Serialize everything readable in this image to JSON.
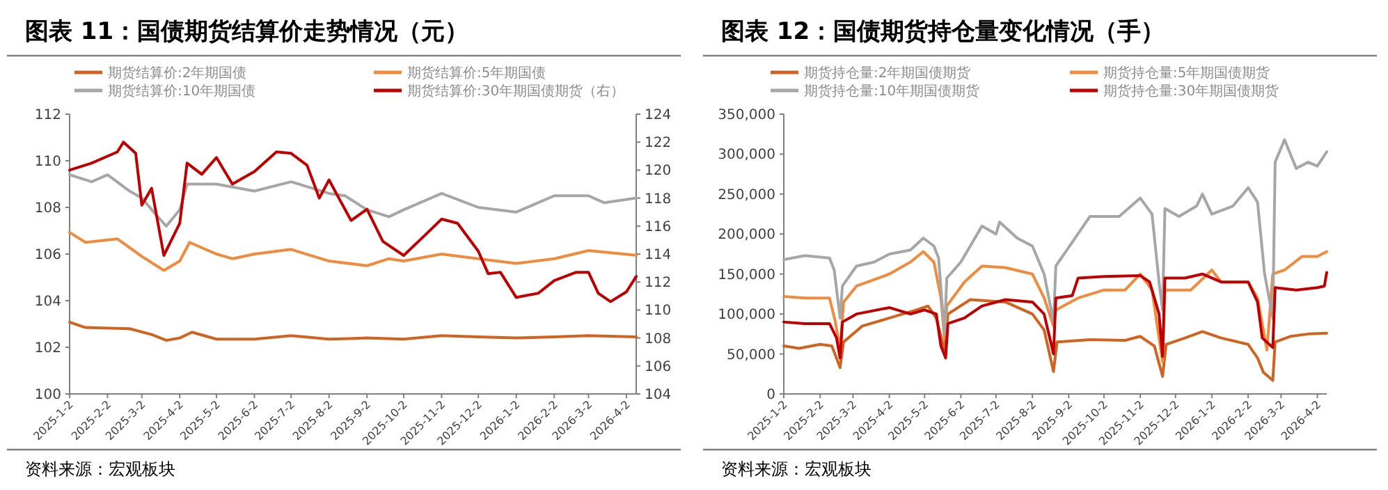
{
  "chart_data": [
    {
      "type": "line",
      "title": "图表 11：国债期货结算价走势情况（元）",
      "legend": "top",
      "annotations": [
        "资料来源：宏观板块"
      ],
      "xlim": [
        "2025-01-02",
        "2026-04-10"
      ],
      "xticks": [
        {
          "value": "2025-01-02",
          "label": "2025-1-2"
        },
        {
          "value": "2025-02-02",
          "label": "2025-2-2"
        },
        {
          "value": "2025-03-02",
          "label": "2025-3-2"
        },
        {
          "value": "2025-04-02",
          "label": "2025-4-2"
        },
        {
          "value": "2025-05-02",
          "label": "2025-5-2"
        },
        {
          "value": "2025-06-02",
          "label": "2025-6-2"
        },
        {
          "value": "2025-07-02",
          "label": "2025-7-2"
        },
        {
          "value": "2025-08-02",
          "label": "2025-8-2"
        },
        {
          "value": "2025-09-02",
          "label": "2025-9-2"
        },
        {
          "value": "2025-10-02",
          "label": "2025-10-2"
        },
        {
          "value": "2025-11-02",
          "label": "2025-11-2"
        },
        {
          "value": "2025-12-02",
          "label": "2025-12-2"
        },
        {
          "value": "2026-01-02",
          "label": "2026-1-2"
        },
        {
          "value": "2026-02-02",
          "label": "2026-2-2"
        },
        {
          "value": "2026-03-02",
          "label": "2026-3-2"
        },
        {
          "value": "2026-04-02",
          "label": "2026-4-2"
        }
      ],
      "ylim": [
        100,
        112
      ],
      "yticks": [
        100,
        102,
        104,
        106,
        108,
        110,
        112
      ],
      "y2lim": [
        104,
        124
      ],
      "y2ticks": [
        104,
        106,
        108,
        110,
        112,
        114,
        116,
        118,
        120,
        122,
        124
      ],
      "series": [
        {
          "name": "期货结算价:2年期国债",
          "color": "#d0631f",
          "x": [
            "2025-01-02",
            "2025-01-15",
            "2025-02-20",
            "2025-03-10",
            "2025-03-22",
            "2025-04-02",
            "2025-04-12",
            "2025-05-02",
            "2025-06-02",
            "2025-07-02",
            "2025-08-02",
            "2025-09-02",
            "2025-10-02",
            "2025-11-02",
            "2025-12-02",
            "2026-01-02",
            "2026-02-02",
            "2026-03-02",
            "2026-04-10"
          ],
          "values": [
            103.08,
            102.85,
            102.8,
            102.55,
            102.3,
            102.4,
            102.65,
            102.35,
            102.35,
            102.5,
            102.35,
            102.4,
            102.35,
            102.5,
            102.45,
            102.4,
            102.45,
            102.5,
            102.45
          ]
        },
        {
          "name": "期货结算价:5年期国债",
          "color": "#f08a3c",
          "x": [
            "2025-01-02",
            "2025-01-15",
            "2025-02-10",
            "2025-03-02",
            "2025-03-20",
            "2025-04-02",
            "2025-04-10",
            "2025-05-02",
            "2025-05-15",
            "2025-06-02",
            "2025-07-02",
            "2025-08-02",
            "2025-09-02",
            "2025-09-20",
            "2025-10-02",
            "2025-11-02",
            "2025-12-02",
            "2026-01-02",
            "2026-02-02",
            "2026-03-02",
            "2026-04-10"
          ],
          "values": [
            106.93,
            106.5,
            106.65,
            105.9,
            105.3,
            105.7,
            106.5,
            106.0,
            105.8,
            106.0,
            106.2,
            105.7,
            105.5,
            105.8,
            105.7,
            106.0,
            105.8,
            105.6,
            105.8,
            106.15,
            105.95
          ]
        },
        {
          "name": "期货结算价:10年期国债",
          "color": "#a6a6a6",
          "x": [
            "2025-01-02",
            "2025-01-20",
            "2025-02-02",
            "2025-02-20",
            "2025-03-02",
            "2025-03-15",
            "2025-03-22",
            "2025-04-02",
            "2025-04-08",
            "2025-05-02",
            "2025-06-02",
            "2025-07-02",
            "2025-08-02",
            "2025-08-15",
            "2025-09-02",
            "2025-09-20",
            "2025-10-02",
            "2025-11-02",
            "2025-12-02",
            "2026-01-02",
            "2026-02-02",
            "2026-03-02",
            "2026-03-15",
            "2026-04-10"
          ],
          "values": [
            109.4,
            109.1,
            109.4,
            108.7,
            108.4,
            107.6,
            107.2,
            107.9,
            109.0,
            109.0,
            108.7,
            109.1,
            108.6,
            108.5,
            107.9,
            107.6,
            107.9,
            108.6,
            108.0,
            107.8,
            108.5,
            108.5,
            108.2,
            108.4
          ]
        },
        {
          "name": "期货结算价:30年期国债期货（右）",
          "color": "#c00000",
          "axis": "y2",
          "x": [
            "2025-01-02",
            "2025-01-20",
            "2025-02-10",
            "2025-02-15",
            "2025-02-25",
            "2025-03-02",
            "2025-03-10",
            "2025-03-20",
            "2025-04-02",
            "2025-04-08",
            "2025-04-20",
            "2025-05-02",
            "2025-05-15",
            "2025-06-02",
            "2025-06-20",
            "2025-07-02",
            "2025-07-15",
            "2025-07-25",
            "2025-08-02",
            "2025-08-10",
            "2025-08-20",
            "2025-09-02",
            "2025-09-15",
            "2025-10-02",
            "2025-10-20",
            "2025-11-02",
            "2025-11-15",
            "2025-12-02",
            "2025-12-10",
            "2025-12-20",
            "2026-01-02",
            "2026-01-20",
            "2026-02-02",
            "2026-02-20",
            "2026-03-02",
            "2026-03-10",
            "2026-03-20",
            "2026-04-02",
            "2026-04-10"
          ],
          "values": [
            120.0,
            120.5,
            121.3,
            122.0,
            121.2,
            117.5,
            118.7,
            113.9,
            116.2,
            120.5,
            119.7,
            120.9,
            119.0,
            119.9,
            121.3,
            121.2,
            120.35,
            118.0,
            119.3,
            118.0,
            116.4,
            117.2,
            114.9,
            113.9,
            115.4,
            116.5,
            116.2,
            114.2,
            112.6,
            112.7,
            110.9,
            111.2,
            112.1,
            112.7,
            112.7,
            111.2,
            110.6,
            111.3,
            112.4
          ]
        }
      ]
    },
    {
      "type": "line",
      "title": "图表 12：国债期货持仓量变化情况（手）",
      "legend": "top",
      "annotations": [
        "资料来源：宏观板块"
      ],
      "xlim": [
        "2025-01-02",
        "2026-04-10"
      ],
      "xticks": [
        {
          "value": "2025-01-02",
          "label": "2025-1-2"
        },
        {
          "value": "2025-02-02",
          "label": "2025-2-2"
        },
        {
          "value": "2025-03-02",
          "label": "2025-3-2"
        },
        {
          "value": "2025-04-02",
          "label": "2025-4-2"
        },
        {
          "value": "2025-05-02",
          "label": "2025-5-2"
        },
        {
          "value": "2025-06-02",
          "label": "2025-6-2"
        },
        {
          "value": "2025-07-02",
          "label": "2025-7-2"
        },
        {
          "value": "2025-08-02",
          "label": "2025-8-2"
        },
        {
          "value": "2025-09-02",
          "label": "2025-9-2"
        },
        {
          "value": "2025-10-02",
          "label": "2025-10-2"
        },
        {
          "value": "2025-11-02",
          "label": "2025-11-2"
        },
        {
          "value": "2025-12-02",
          "label": "2025-12-2"
        },
        {
          "value": "2026-01-02",
          "label": "2026-1-2"
        },
        {
          "value": "2026-02-02",
          "label": "2026-2-2"
        },
        {
          "value": "2026-03-02",
          "label": "2026-3-2"
        },
        {
          "value": "2026-04-02",
          "label": "2026-4-2"
        }
      ],
      "ylim": [
        0,
        350000
      ],
      "yticks": [
        0,
        {
          "value": 50000,
          "label": "50,000"
        },
        {
          "value": 100000,
          "label": "100,000"
        },
        {
          "value": 150000,
          "label": "150,000"
        },
        {
          "value": 200000,
          "label": "200,000"
        },
        {
          "value": 250000,
          "label": "250,000"
        },
        {
          "value": 300000,
          "label": "300,000"
        },
        {
          "value": 350000,
          "label": "350,000"
        }
      ],
      "series": [
        {
          "name": "期货持仓量:2年期国债期货",
          "color": "#d0631f",
          "x": [
            "2025-01-02",
            "2025-01-15",
            "2025-02-02",
            "2025-02-12",
            "2025-02-19",
            "2025-02-22",
            "2025-03-10",
            "2025-04-02",
            "2025-04-25",
            "2025-05-05",
            "2025-05-12",
            "2025-05-19",
            "2025-05-22",
            "2025-06-10",
            "2025-07-10",
            "2025-08-02",
            "2025-08-12",
            "2025-08-20",
            "2025-08-23",
            "2025-09-20",
            "2025-10-20",
            "2025-11-02",
            "2025-11-14",
            "2025-11-21",
            "2025-11-24",
            "2025-12-10",
            "2025-12-25",
            "2026-01-10",
            "2026-02-02",
            "2026-02-10",
            "2026-02-15",
            "2026-02-23",
            "2026-02-25",
            "2026-03-10",
            "2026-03-25",
            "2026-04-10"
          ],
          "values": [
            60000,
            57000,
            62000,
            60000,
            33000,
            65000,
            85000,
            95000,
            105000,
            110000,
            95000,
            55000,
            100000,
            118000,
            115000,
            100000,
            80000,
            28000,
            65000,
            68000,
            67000,
            72000,
            60000,
            22000,
            62000,
            70000,
            78000,
            70000,
            62000,
            45000,
            27000,
            17000,
            65000,
            72000,
            75000,
            76000
          ]
        },
        {
          "name": "期货持仓量:5年期国债期货",
          "color": "#f08a3c",
          "x": [
            "2025-01-02",
            "2025-01-20",
            "2025-02-10",
            "2025-02-15",
            "2025-02-19",
            "2025-02-22",
            "2025-03-05",
            "2025-04-02",
            "2025-04-20",
            "2025-05-01",
            "2025-05-10",
            "2025-05-16",
            "2025-05-19",
            "2025-05-21",
            "2025-06-05",
            "2025-06-20",
            "2025-07-10",
            "2025-08-02",
            "2025-08-12",
            "2025-08-20",
            "2025-08-22",
            "2025-09-10",
            "2025-10-02",
            "2025-10-20",
            "2025-11-02",
            "2025-11-12",
            "2025-11-19",
            "2025-11-21",
            "2025-11-23",
            "2025-12-15",
            "2026-01-02",
            "2026-01-10",
            "2026-02-02",
            "2026-02-10",
            "2026-02-18",
            "2026-02-23",
            "2026-03-05",
            "2026-03-20",
            "2026-04-02",
            "2026-04-10"
          ],
          "values": [
            122000,
            120000,
            120000,
            90000,
            55000,
            115000,
            135000,
            150000,
            165000,
            178000,
            165000,
            120000,
            70000,
            110000,
            140000,
            160000,
            158000,
            150000,
            120000,
            85000,
            105000,
            120000,
            130000,
            130000,
            150000,
            130000,
            60000,
            40000,
            130000,
            130000,
            155000,
            140000,
            140000,
            120000,
            55000,
            150000,
            155000,
            172000,
            172000,
            178000
          ]
        },
        {
          "name": "期货持仓量:10年期国债期货",
          "color": "#a6a6a6",
          "x": [
            "2025-01-02",
            "2025-01-20",
            "2025-02-10",
            "2025-02-14",
            "2025-02-19",
            "2025-02-21",
            "2025-03-05",
            "2025-03-20",
            "2025-04-02",
            "2025-04-20",
            "2025-05-01",
            "2025-05-10",
            "2025-05-14",
            "2025-05-19",
            "2025-05-21",
            "2025-06-02",
            "2025-06-20",
            "2025-07-02",
            "2025-07-05",
            "2025-07-20",
            "2025-08-02",
            "2025-08-12",
            "2025-08-20",
            "2025-08-22",
            "2025-09-05",
            "2025-09-20",
            "2025-10-15",
            "2025-11-02",
            "2025-11-12",
            "2025-11-18",
            "2025-11-21",
            "2025-11-23",
            "2025-12-05",
            "2025-12-20",
            "2025-12-25",
            "2026-01-02",
            "2026-01-20",
            "2026-02-02",
            "2026-02-10",
            "2026-02-16",
            "2026-02-23",
            "2026-02-25",
            "2026-03-05",
            "2026-03-15",
            "2026-03-25",
            "2026-04-02",
            "2026-04-10"
          ],
          "values": [
            168000,
            173000,
            170000,
            155000,
            95000,
            135000,
            160000,
            165000,
            175000,
            180000,
            195000,
            185000,
            170000,
            75000,
            145000,
            165000,
            210000,
            200000,
            215000,
            195000,
            185000,
            150000,
            90000,
            160000,
            190000,
            222000,
            222000,
            245000,
            225000,
            140000,
            105000,
            232000,
            222000,
            235000,
            250000,
            225000,
            235000,
            258000,
            240000,
            150000,
            95000,
            290000,
            318000,
            282000,
            290000,
            285000,
            303000
          ]
        },
        {
          "name": "期货持仓量:30年期国债期货",
          "color": "#c00000",
          "x": [
            "2025-01-02",
            "2025-01-20",
            "2025-02-10",
            "2025-02-16",
            "2025-02-19",
            "2025-02-21",
            "2025-03-05",
            "2025-04-02",
            "2025-04-20",
            "2025-05-02",
            "2025-05-12",
            "2025-05-16",
            "2025-05-20",
            "2025-05-22",
            "2025-06-05",
            "2025-06-20",
            "2025-07-10",
            "2025-08-02",
            "2025-08-12",
            "2025-08-20",
            "2025-08-22",
            "2025-09-05",
            "2025-09-10",
            "2025-10-02",
            "2025-11-02",
            "2025-11-10",
            "2025-11-18",
            "2025-11-21",
            "2025-11-23",
            "2025-12-10",
            "2025-12-25",
            "2026-01-10",
            "2026-02-02",
            "2026-02-10",
            "2026-02-14",
            "2026-02-23",
            "2026-02-25",
            "2026-03-15",
            "2026-04-02",
            "2026-04-08",
            "2026-04-10"
          ],
          "values": [
            90000,
            88000,
            88000,
            70000,
            45000,
            90000,
            100000,
            108000,
            100000,
            105000,
            100000,
            60000,
            45000,
            88000,
            95000,
            110000,
            118000,
            115000,
            100000,
            50000,
            120000,
            123000,
            145000,
            147000,
            148000,
            140000,
            100000,
            47000,
            145000,
            145000,
            150000,
            140000,
            140000,
            115000,
            70000,
            58000,
            133000,
            130000,
            133000,
            135000,
            152000
          ]
        }
      ]
    }
  ]
}
